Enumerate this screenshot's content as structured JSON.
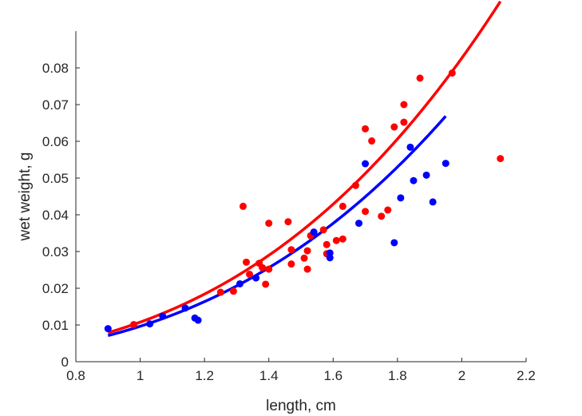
{
  "chart_data": {
    "type": "scatter",
    "xlabel": "length, cm",
    "ylabel": "wet weight, g",
    "xlim": [
      0.8,
      2.2
    ],
    "ylim": [
      0,
      0.09
    ],
    "xticks": [
      0.8,
      1,
      1.2,
      1.4,
      1.6,
      1.8,
      2,
      2.2
    ],
    "xtick_labels": [
      "0.8",
      "1",
      "1.2",
      "1.4",
      "1.6",
      "1.8",
      "2",
      "2.2"
    ],
    "yticks": [
      0,
      0.01,
      0.02,
      0.03,
      0.04,
      0.05,
      0.06,
      0.07,
      0.08
    ],
    "ytick_labels": [
      "0",
      "0.01",
      "0.02",
      "0.03",
      "0.04",
      "0.05",
      "0.06",
      "0.07",
      "0.08"
    ],
    "grid": false,
    "series": [
      {
        "color": "#ff0000",
        "points": [
          [
            0.98,
            0.0101
          ],
          [
            1.32,
            0.0423
          ],
          [
            1.33,
            0.0271
          ],
          [
            1.34,
            0.0238
          ],
          [
            1.37,
            0.0268
          ],
          [
            1.38,
            0.0256
          ],
          [
            1.39,
            0.0211
          ],
          [
            1.4,
            0.0252
          ],
          [
            1.4,
            0.0377
          ],
          [
            1.46,
            0.0381
          ],
          [
            1.47,
            0.0305
          ],
          [
            1.47,
            0.0266
          ],
          [
            1.51,
            0.0282
          ],
          [
            1.52,
            0.0252
          ],
          [
            1.52,
            0.0302
          ],
          [
            1.53,
            0.0343
          ],
          [
            1.57,
            0.0359
          ],
          [
            1.58,
            0.0319
          ],
          [
            1.58,
            0.0294
          ],
          [
            1.61,
            0.033
          ],
          [
            1.63,
            0.0334
          ],
          [
            1.63,
            0.0423
          ],
          [
            1.67,
            0.048
          ],
          [
            1.7,
            0.0634
          ],
          [
            1.7,
            0.0409
          ],
          [
            1.72,
            0.0601
          ],
          [
            1.75,
            0.0396
          ],
          [
            1.77,
            0.0413
          ],
          [
            1.79,
            0.0639
          ],
          [
            1.82,
            0.07
          ],
          [
            1.82,
            0.0652
          ],
          [
            1.87,
            0.0772
          ],
          [
            1.97,
            0.0786
          ],
          [
            2.12,
            0.0553
          ],
          [
            1.25,
            0.0189
          ],
          [
            1.29,
            0.0192
          ]
        ],
        "fit": {
          "type": "power",
          "a": 0.01077,
          "b": 2.94,
          "x_range": [
            0.9,
            2.12
          ]
        }
      },
      {
        "color": "#0000ff",
        "points": [
          [
            0.9,
            0.009
          ],
          [
            1.03,
            0.0103
          ],
          [
            1.07,
            0.0124
          ],
          [
            1.14,
            0.0146
          ],
          [
            1.17,
            0.0119
          ],
          [
            1.18,
            0.0113
          ],
          [
            1.31,
            0.0212
          ],
          [
            1.36,
            0.0228
          ],
          [
            1.54,
            0.0353
          ],
          [
            1.59,
            0.0296
          ],
          [
            1.59,
            0.0283
          ],
          [
            1.68,
            0.0377
          ],
          [
            1.7,
            0.0539
          ],
          [
            1.79,
            0.0324
          ],
          [
            1.81,
            0.0446
          ],
          [
            1.84,
            0.0584
          ],
          [
            1.85,
            0.0493
          ],
          [
            1.89,
            0.0508
          ],
          [
            1.91,
            0.0435
          ],
          [
            1.95,
            0.054
          ]
        ],
        "fit": {
          "type": "power",
          "a": 0.00964,
          "b": 2.9,
          "x_range": [
            0.9,
            1.95
          ]
        }
      }
    ]
  }
}
